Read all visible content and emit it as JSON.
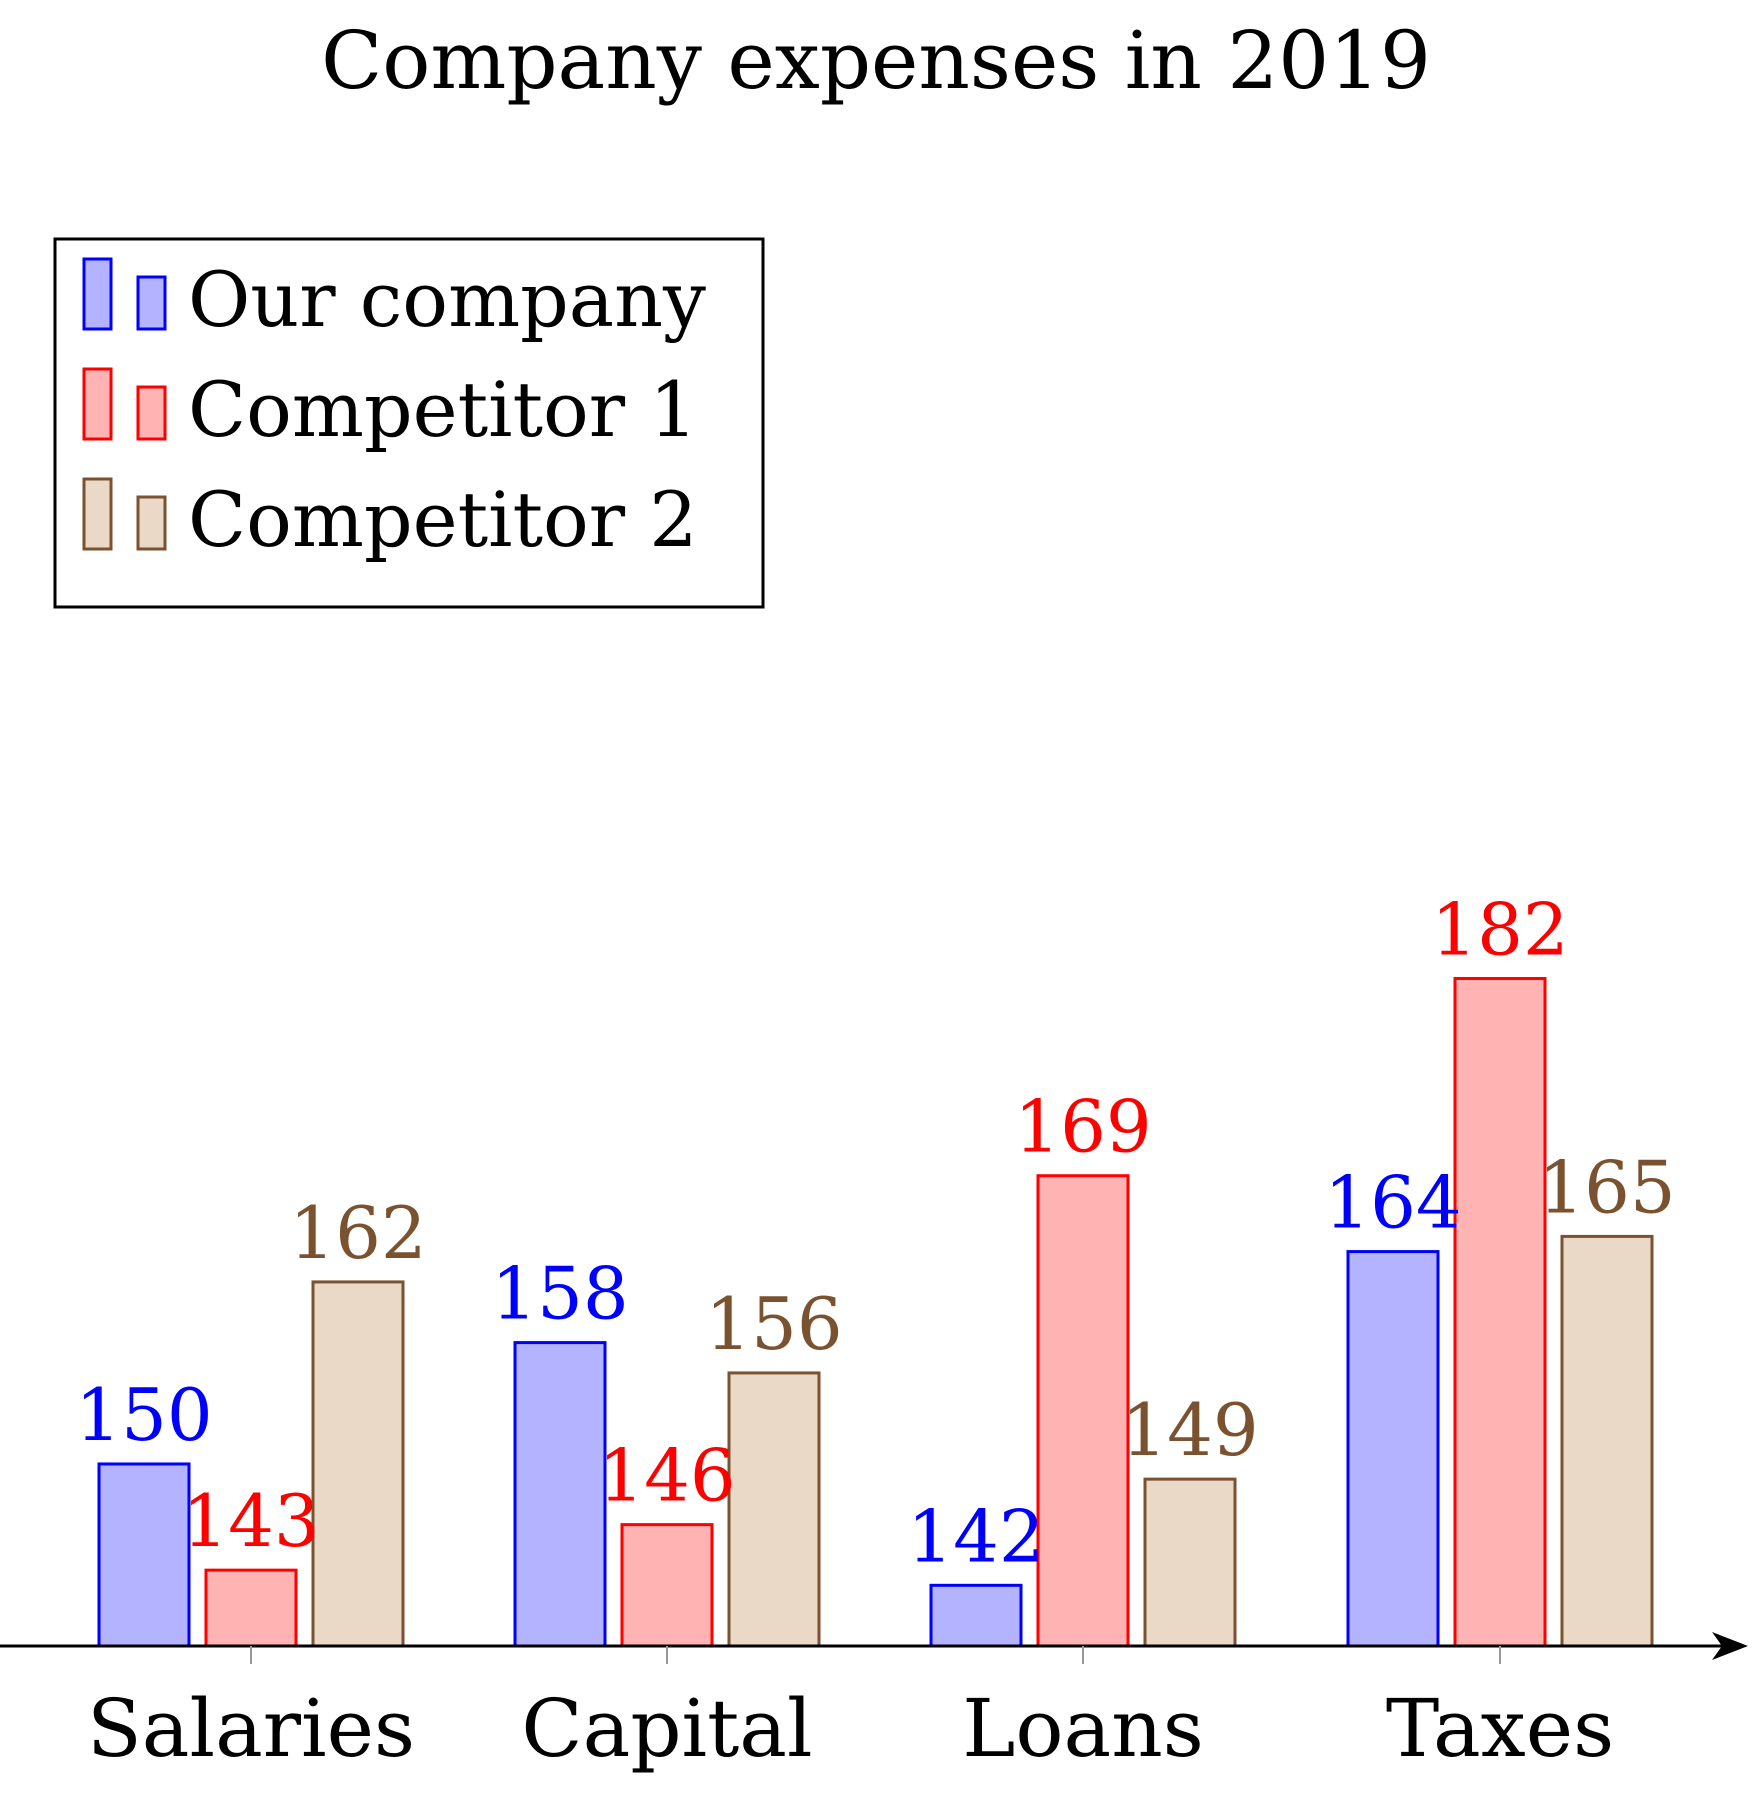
{
  "chart_data": {
    "type": "bar",
    "title": "Company expenses in 2019",
    "xlabel": "",
    "ylabel": "",
    "categories": [
      "Salaries",
      "Capital",
      "Loans",
      "Taxes"
    ],
    "series": [
      {
        "name": "Our company",
        "values": [
          150,
          158,
          142,
          164
        ],
        "stroke": "#0000ff",
        "fill": "#b3b3ff"
      },
      {
        "name": "Competitor 1",
        "values": [
          143,
          146,
          169,
          182
        ],
        "stroke": "#ff0000",
        "fill": "#ffb3b3"
      },
      {
        "name": "Competitor 2",
        "values": [
          162,
          156,
          149,
          165
        ],
        "stroke": "#7a5230",
        "fill": "#ead9c6"
      }
    ],
    "ylim": [
      138,
      194
    ],
    "grid": false,
    "legend_position": "top-left",
    "data_labels": true
  }
}
